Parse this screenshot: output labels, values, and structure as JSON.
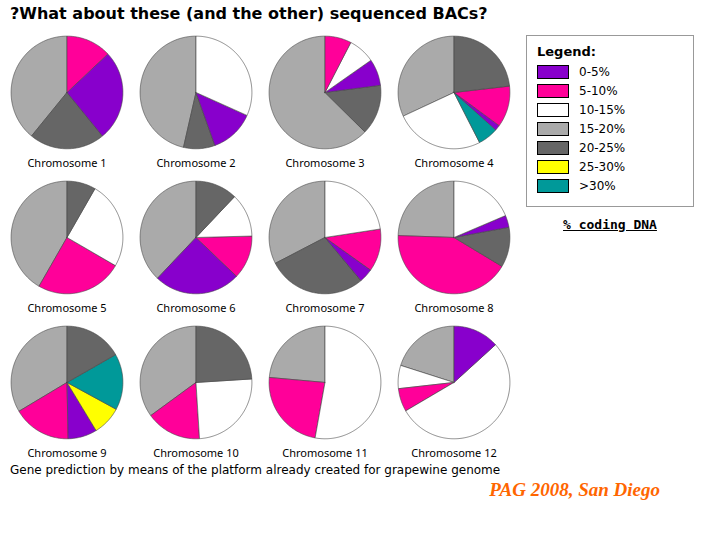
{
  "chart_data": {
    "type": "pie",
    "title": "?What about these (and the other) sequenced BACs?",
    "subtitle": "% coding DNA",
    "annotations": [
      {
        "text": "Gene prediction by means of the platform already created for grapewine genome"
      },
      {
        "text": "PAG 2008, San Diego",
        "color": "#ff6600"
      }
    ],
    "legend_title": "Legend:",
    "legend_items": [
      {
        "name": "0-5%",
        "color": "#8800cc"
      },
      {
        "name": "5-10%",
        "color": "#ff0099"
      },
      {
        "name": "10-15%",
        "color": "#ffffff"
      },
      {
        "name": "15-20%",
        "color": "#aaaaaa"
      },
      {
        "name": "20-25%",
        "color": "#666666"
      },
      {
        "name": "25-30%",
        "color": "#ffff00"
      },
      {
        "name": ">30%",
        "color": "#009999"
      }
    ],
    "pies": [
      {
        "name": "Chromosome 1",
        "values": [
          37.5,
          21,
          25,
          12.5
        ],
        "colors": [
          "#aaaaaa",
          "#666666",
          "#8800cc",
          "#ff0099"
        ]
      },
      {
        "name": "Chromosome 2",
        "values": [
          46,
          9,
          12.71,
          31.4
        ],
        "colors": [
          "#aaaaaa",
          "#666666",
          "#8800cc",
          "#ffffff"
        ]
      },
      {
        "name": "Chromosome 3",
        "values": [
          61,
          14,
          7.44,
          7.49,
          7.43
        ],
        "colors": [
          "#aaaaaa",
          "#666666",
          "#8800cc",
          "#ffffff",
          "#ff0099"
        ]
      },
      {
        "name": "Chromosome 4",
        "values": [
          29.39,
          23.64,
          5.41,
          1.42,
          10.91,
          21.36
        ],
        "colors": [
          "#aaaaaa",
          "#ffffff",
          "#009999",
          "#8800cc",
          "#ff0099",
          "#666666"
        ]
      },
      {
        "name": "Chromosome 5",
        "values": [
          41.67,
          25,
          25,
          8.33
        ],
        "colors": [
          "#aaaaaa",
          "#ff0099",
          "#ffffff",
          "#666666"
        ]
      },
      {
        "name": "Chromosome 6",
        "values": [
          37.9,
          25,
          12.5,
          12.5,
          12.1
        ],
        "colors": [
          "#aaaaaa",
          "#8800cc",
          "#ff0099",
          "#ffffff",
          "#666666"
        ]
      },
      {
        "name": "Chromosome 7",
        "values": [
          33.33,
          29.17,
          4.17,
          12.5,
          23.11
        ],
        "colors": [
          "#aaaaaa",
          "#666666",
          "#8800cc",
          "#ff0099",
          "#ffffff"
        ]
      },
      {
        "name": "Chromosome 8",
        "values": [
          24.71,
          42.35,
          11.59,
          3.48,
          18.82
        ],
        "colors": [
          "#aaaaaa",
          "#ff0099",
          "#666666",
          "#8800cc",
          "#ffffff"
        ]
      },
      {
        "name": "Chromosome 9",
        "values": [
          33.32,
          16.67,
          8.33,
          8.33,
          16.0,
          16.67
        ],
        "colors": [
          "#aaaaaa",
          "#ff0099",
          "#8800cc",
          "#ffff00",
          "#009999",
          "#666666"
        ]
      },
      {
        "name": "Chromosome 10",
        "values": [
          35,
          16,
          25,
          24
        ],
        "colors": [
          "#aaaaaa",
          "#ff0099",
          "#ffffff",
          "#666666"
        ]
      },
      {
        "name": "Chromosome 11",
        "values": [
          25,
          25,
          56
        ],
        "colors": [
          "#aaaaaa",
          "#ff0099",
          "#ffffff"
        ]
      },
      {
        "name": "Chromosome 12",
        "values": [
          21.57,
          7.14,
          7.14,
          57.14,
          14.28
        ],
        "colors": [
          "#aaaaaa",
          "#ffffff",
          "#ff0099",
          "#ffffff",
          "#8800cc"
        ]
      }
    ]
  }
}
